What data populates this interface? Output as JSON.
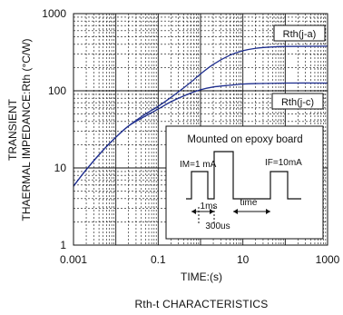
{
  "chart_data": {
    "type": "line",
    "title": "Rth-t CHARACTERISTICS",
    "xlabel": "TIME:(s)",
    "ylabel_line1": "TRANSIENT",
    "ylabel_line2": "THAERMAL IMPEDANCE:Rth (°C/W)",
    "x_scale": "log",
    "y_scale": "log",
    "xlim": [
      0.001,
      1000
    ],
    "ylim": [
      1,
      1000
    ],
    "x_ticks": [
      {
        "value": 0.001,
        "label": "0.001"
      },
      {
        "value": 0.1,
        "label": "0.1"
      },
      {
        "value": 10,
        "label": "10"
      },
      {
        "value": 1000,
        "label": "1000"
      }
    ],
    "y_ticks": [
      {
        "value": 1,
        "label": "1"
      },
      {
        "value": 10,
        "label": "10"
      },
      {
        "value": 100,
        "label": "100"
      },
      {
        "value": 1000,
        "label": "1000"
      }
    ],
    "grid": true,
    "series": [
      {
        "name": "Rth(j-a)",
        "color": "#1f2f8f",
        "points": [
          [
            0.001,
            5.8
          ],
          [
            0.002,
            9.5
          ],
          [
            0.005,
            17
          ],
          [
            0.01,
            25
          ],
          [
            0.02,
            35
          ],
          [
            0.05,
            50
          ],
          [
            0.1,
            63
          ],
          [
            0.2,
            82
          ],
          [
            0.5,
            120
          ],
          [
            1,
            165
          ],
          [
            2,
            220
          ],
          [
            5,
            290
          ],
          [
            10,
            330
          ],
          [
            20,
            355
          ],
          [
            50,
            370
          ],
          [
            100,
            375
          ],
          [
            1000,
            378
          ]
        ]
      },
      {
        "name": "Rth(j-c)",
        "color": "#1f2f8f",
        "points": [
          [
            0.001,
            5.8
          ],
          [
            0.002,
            9.5
          ],
          [
            0.005,
            17
          ],
          [
            0.01,
            25
          ],
          [
            0.02,
            35
          ],
          [
            0.05,
            47
          ],
          [
            0.1,
            58
          ],
          [
            0.2,
            72
          ],
          [
            0.5,
            90
          ],
          [
            1,
            103
          ],
          [
            2,
            112
          ],
          [
            5,
            118
          ],
          [
            10,
            122
          ],
          [
            20,
            124
          ],
          [
            50,
            125
          ],
          [
            100,
            126
          ],
          [
            1000,
            126
          ]
        ]
      }
    ],
    "inset": {
      "title": "Mounted on epoxy board",
      "im_label": "IM=1 mA",
      "if_label": "IF=10mA",
      "ms_label": "1ms",
      "time_label": "time",
      "us_label": "300us"
    }
  }
}
